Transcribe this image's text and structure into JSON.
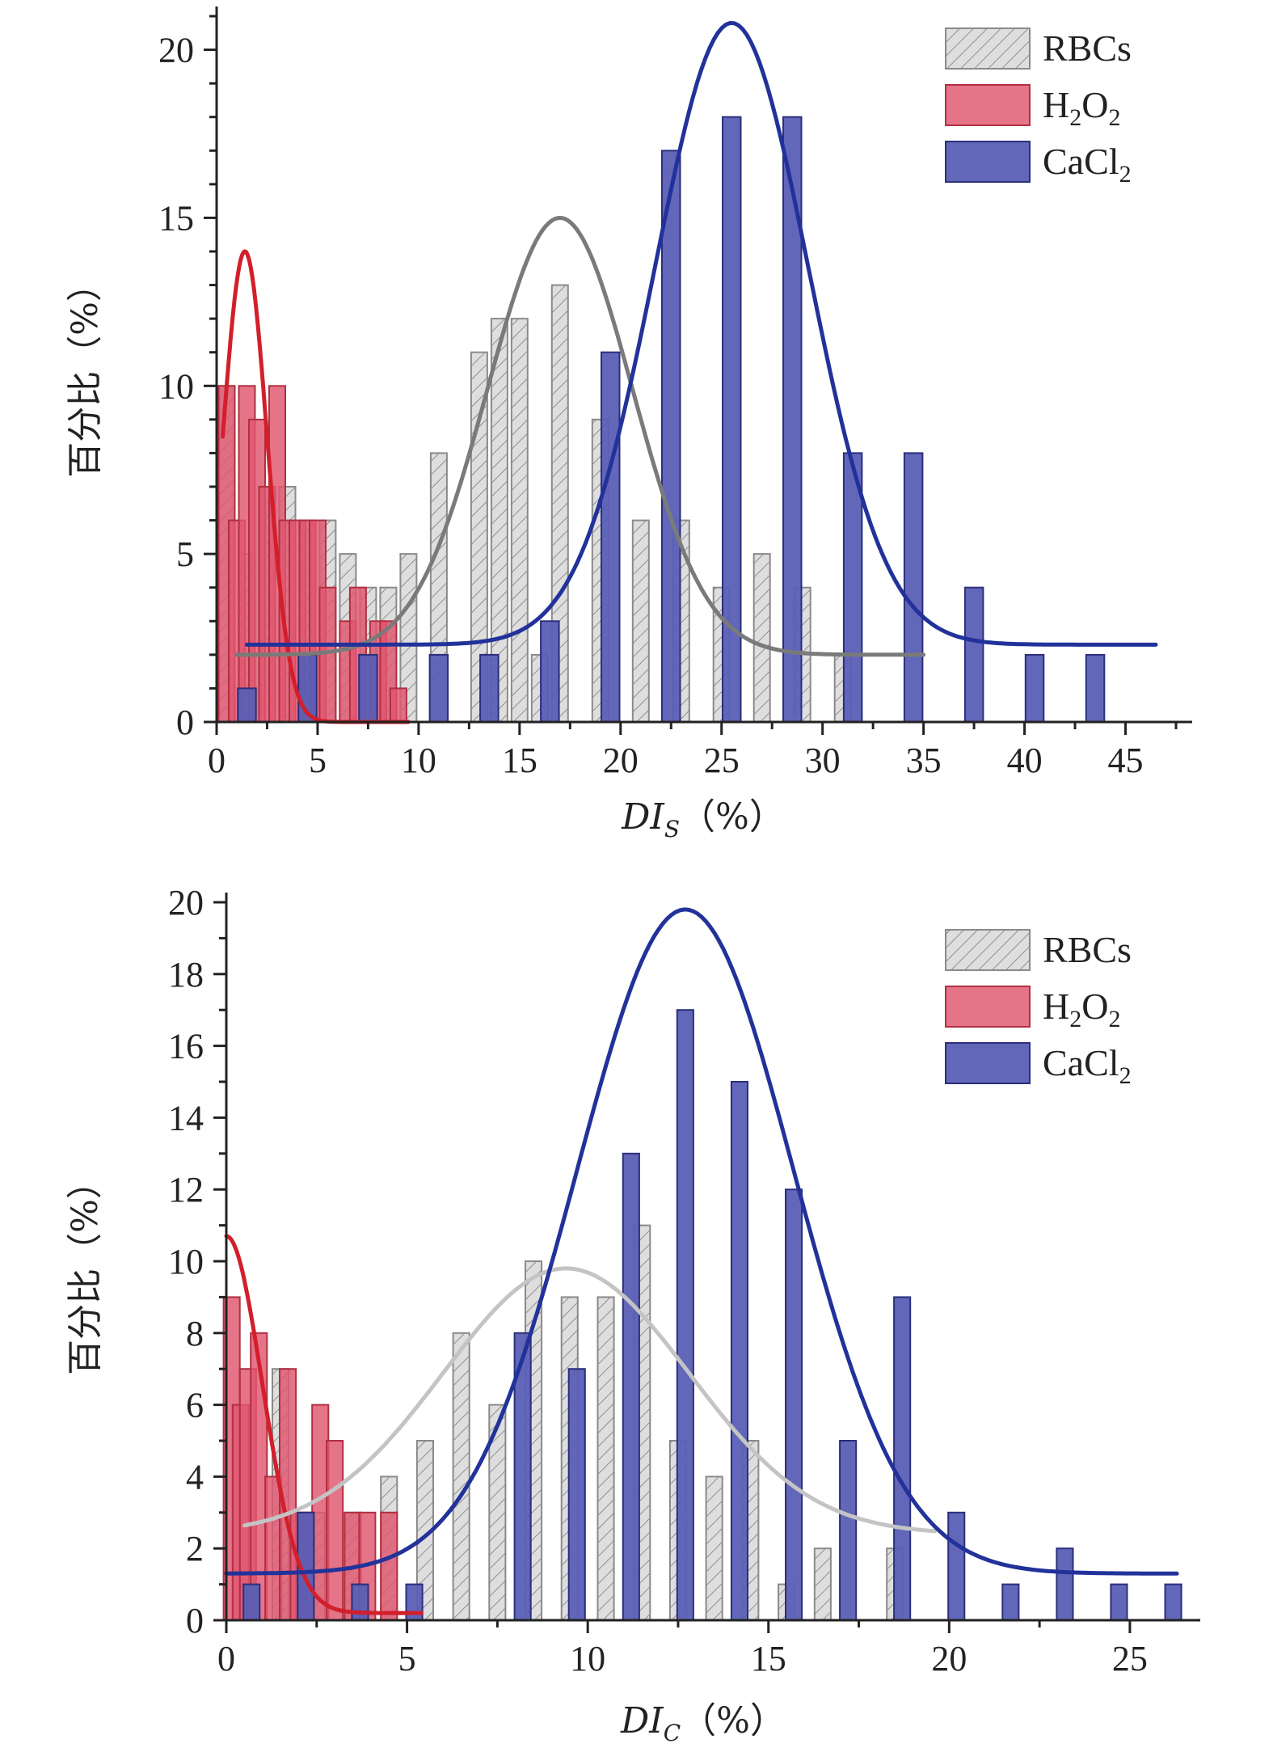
{
  "colors": {
    "rbc": "#d9d9d9",
    "rbc_stroke": "#8a8a8a",
    "h2o2": "#e0566f",
    "h2o2_stroke": "#b03040",
    "cacl2": "#5a5fb5",
    "cacl2_stroke": "#2b2f7a",
    "fit_h2o2": "#d21f2b",
    "fit_rbc_top": "#7a7a7a",
    "fit_rbc_bottom": "#c4c4c4",
    "fit_cacl2": "#22329a"
  },
  "chart_data": [
    {
      "type": "bar",
      "xlabel": {
        "main": "DI",
        "sub": "S",
        "unit": "（%）"
      },
      "ylabel": "百分比（%）",
      "xlim": [
        0,
        47.5
      ],
      "ylim": [
        0,
        21
      ],
      "xticks": [
        0,
        5,
        10,
        15,
        20,
        25,
        30,
        35,
        40,
        45
      ],
      "yticks": [
        0,
        5,
        10,
        15,
        20
      ],
      "legend_position": "top-right",
      "legend": [
        {
          "label": "RBCs",
          "series": "rbc"
        },
        {
          "label": "H",
          "sub1": "2",
          "mid": "O",
          "sub2": "2",
          "series": "h2o2"
        },
        {
          "label": "CaCl",
          "sub1": "2",
          "series": "cacl2"
        }
      ],
      "series": [
        {
          "key": "rbc",
          "bar_width": 0.8,
          "x": [
            0.5,
            1.5,
            2.5,
            3.5,
            4.5,
            5.5,
            6.5,
            7.5,
            8.5,
            9.5,
            11.0,
            13.0,
            14.0,
            15.0,
            16.0,
            17.0,
            19.0,
            21.0,
            23.0,
            25.0,
            27.0,
            29.0,
            31.0
          ],
          "values": [
            10,
            5,
            7,
            7,
            6,
            6,
            5,
            4,
            4,
            5,
            8,
            11,
            12,
            12,
            2,
            13,
            9,
            6,
            6,
            4,
            5,
            4,
            2
          ]
        },
        {
          "key": "h2o2",
          "bar_width": 0.8,
          "x": [
            0.5,
            1.0,
            1.5,
            2.0,
            2.5,
            3.0,
            3.5,
            4.0,
            4.5,
            5.0,
            5.5,
            6.5,
            7.0,
            7.5,
            8.0,
            8.5,
            9.0
          ],
          "values": [
            10,
            6,
            10,
            9,
            7,
            10,
            6,
            6,
            6,
            6,
            4,
            3,
            4,
            2,
            3,
            3,
            1
          ]
        },
        {
          "key": "cacl2",
          "bar_width": 0.9,
          "x": [
            1.5,
            4.5,
            7.5,
            11.0,
            13.5,
            16.5,
            19.5,
            22.5,
            25.5,
            28.5,
            31.5,
            34.5,
            37.5,
            40.5,
            43.5
          ],
          "values": [
            1,
            2,
            2,
            2,
            2,
            3,
            11,
            17,
            18,
            18,
            8,
            8,
            4,
            2,
            2
          ]
        }
      ],
      "fits": [
        {
          "key": "fit_h2o2",
          "color_key": "fit_h2o2",
          "y0": 0,
          "A": 14,
          "xc": 1.4,
          "w": 1.1,
          "range": [
            0.3,
            9.5
          ]
        },
        {
          "key": "fit_rbc",
          "color_key": "fit_rbc_top",
          "y0": 2,
          "A": 13,
          "xc": 17.0,
          "w": 3.6,
          "range": [
            1.0,
            35.0
          ]
        },
        {
          "key": "fit_cacl2",
          "color_key": "fit_cacl2",
          "y0": 2.3,
          "A": 18.5,
          "xc": 25.5,
          "w": 3.8,
          "range": [
            1.5,
            46.5
          ]
        }
      ]
    },
    {
      "type": "bar",
      "xlabel": {
        "main": "DI",
        "sub": "C",
        "unit": "（%）"
      },
      "ylabel": "百分比（%）",
      "xlim": [
        0,
        26.5
      ],
      "ylim": [
        0,
        20
      ],
      "xticks": [
        0,
        5,
        10,
        15,
        20,
        25
      ],
      "yticks": [
        0,
        2,
        4,
        6,
        8,
        10,
        12,
        14,
        16,
        18,
        20
      ],
      "legend_position": "top-right",
      "legend": [
        {
          "label": "RBCs",
          "series": "rbc"
        },
        {
          "label": "H",
          "sub1": "2",
          "mid": "O",
          "sub2": "2",
          "series": "h2o2"
        },
        {
          "label": "CaCl",
          "sub1": "2",
          "series": "cacl2"
        }
      ],
      "series": [
        {
          "key": "rbc",
          "bar_width": 0.45,
          "x": [
            0.6,
            1.5,
            2.5,
            3.5,
            4.5,
            5.5,
            6.5,
            7.5,
            8.5,
            9.5,
            10.5,
            11.5,
            12.5,
            13.5,
            14.5,
            15.5,
            16.5,
            18.5
          ],
          "values": [
            1,
            7,
            3,
            3,
            4,
            5,
            8,
            6,
            10,
            9,
            9,
            11,
            5,
            4,
            5,
            1,
            2,
            2
          ]
        },
        {
          "key": "h2o2",
          "bar_width": 0.45,
          "x": [
            0.15,
            0.4,
            0.6,
            0.9,
            1.3,
            1.7,
            2.0,
            2.2,
            2.6,
            3.0,
            3.5,
            3.9,
            4.5
          ],
          "values": [
            9,
            6,
            7,
            8,
            4,
            7,
            3,
            3,
            6,
            5,
            3,
            3,
            3
          ]
        },
        {
          "key": "cacl2",
          "bar_width": 0.45,
          "x": [
            0.7,
            2.2,
            3.7,
            5.2,
            8.2,
            9.7,
            11.2,
            12.7,
            14.2,
            15.7,
            17.2,
            18.7,
            20.2,
            21.7,
            23.2,
            24.7,
            26.2
          ],
          "values": [
            1,
            3,
            1,
            1,
            8,
            7,
            13,
            17,
            15,
            12,
            5,
            9,
            3,
            1,
            2,
            1,
            1
          ]
        }
      ],
      "fits": [
        {
          "key": "fit_h2o2",
          "color_key": "fit_h2o2",
          "y0": 0.2,
          "A": 10.5,
          "xc": 0.0,
          "w": 1.0,
          "range": [
            0.0,
            5.4
          ]
        },
        {
          "key": "fit_rbc",
          "color_key": "fit_rbc_bottom",
          "y0": 2.4,
          "A": 7.4,
          "xc": 9.4,
          "w": 3.4,
          "range": [
            0.5,
            19.6
          ]
        },
        {
          "key": "fit_cacl2",
          "color_key": "fit_cacl2",
          "y0": 1.3,
          "A": 18.5,
          "xc": 12.7,
          "w": 3.0,
          "range": [
            0.0,
            26.3
          ]
        }
      ]
    }
  ]
}
